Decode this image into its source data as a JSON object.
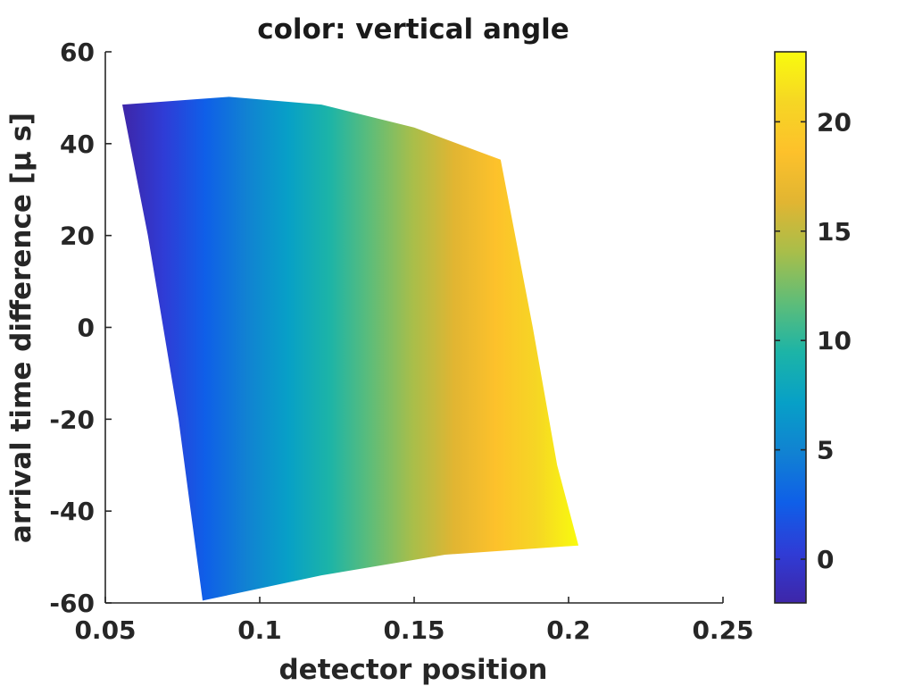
{
  "chart_data": {
    "type": "heatmap",
    "title": "color: vertical angle",
    "xlabel": "detector position",
    "ylabel": "arrival time difference [μ s]",
    "xlim": [
      0.05,
      0.25
    ],
    "ylim": [
      -60,
      60
    ],
    "x_ticks": [
      "0.05",
      "0.1",
      "0.15",
      "0.2",
      "0.25"
    ],
    "y_ticks": [
      "60",
      "40",
      "20",
      "0",
      "-20",
      "-40",
      "-60"
    ],
    "colorbar": {
      "label": "vertical angle",
      "range": [
        -2,
        23.2
      ],
      "ticks": [
        "20",
        "15",
        "10",
        "5",
        "0"
      ],
      "colormap": [
        "#3e26a8",
        "#2f3cd6",
        "#0f5fe8",
        "#1182d2",
        "#07a0c7",
        "#1cb4a7",
        "#5fbd78",
        "#a8be4a",
        "#e1b532",
        "#fdc12b",
        "#f6d624",
        "#f9fb0e"
      ]
    },
    "region": {
      "left_edge": [
        [
          0.0555,
          48.5
        ],
        [
          0.0638,
          20
        ],
        [
          0.0737,
          -20
        ],
        [
          0.0815,
          -59.5
        ]
      ],
      "top_edge": [
        [
          0.0555,
          48.5
        ],
        [
          0.09,
          50.2
        ],
        [
          0.12,
          48.5
        ],
        [
          0.15,
          43.5
        ],
        [
          0.178,
          36.5
        ]
      ],
      "right_edge": [
        [
          0.178,
          36.5
        ],
        [
          0.1884,
          0
        ],
        [
          0.1963,
          -30
        ],
        [
          0.2032,
          -47.5
        ]
      ],
      "bottom_edge": [
        [
          0.0815,
          -59.5
        ],
        [
          0.12,
          -54
        ],
        [
          0.16,
          -49.5
        ],
        [
          0.2032,
          -47.5
        ]
      ],
      "color_min_at_left": -2,
      "color_max_at_right": 23.2
    }
  }
}
